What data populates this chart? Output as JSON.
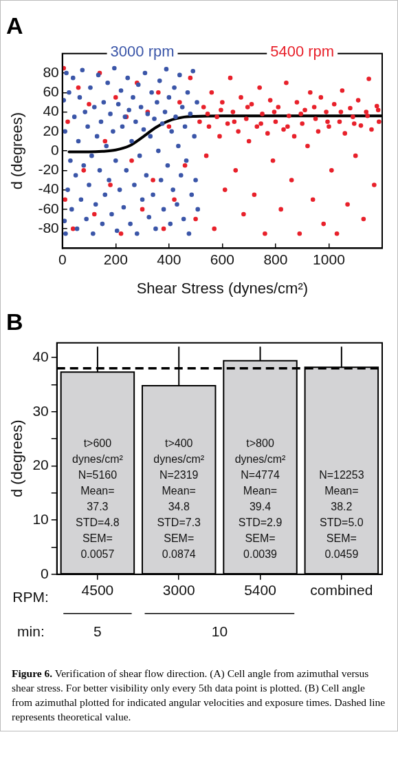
{
  "chart_data": [
    {
      "type": "scatter",
      "title": "A",
      "xlabel": "Shear Stress (dynes/cm²)",
      "ylabel": "d (degrees)",
      "xlim": [
        0,
        1200
      ],
      "xticks": [
        0,
        200,
        400,
        600,
        800,
        1000
      ],
      "ylim": [
        -100,
        100
      ],
      "yticks": [
        -80,
        -60,
        -40,
        -20,
        0,
        20,
        40,
        60,
        80
      ],
      "grid": false,
      "marker": "circle",
      "series": [
        {
          "name": "3000 rpm",
          "color": "#3a55a8",
          "x": [
            5,
            8,
            10,
            12,
            15,
            20,
            25,
            30,
            35,
            40,
            45,
            50,
            55,
            60,
            65,
            70,
            75,
            80,
            85,
            90,
            95,
            100,
            105,
            110,
            115,
            120,
            125,
            130,
            135,
            140,
            145,
            150,
            155,
            160,
            165,
            170,
            175,
            180,
            185,
            190,
            195,
            200,
            205,
            210,
            215,
            220,
            225,
            230,
            235,
            240,
            245,
            250,
            255,
            260,
            265,
            270,
            275,
            280,
            285,
            290,
            295,
            300,
            305,
            310,
            315,
            320,
            325,
            330,
            335,
            340,
            345,
            350,
            355,
            360,
            365,
            370,
            375,
            380,
            385,
            390,
            395,
            400,
            405,
            410,
            415,
            420,
            425,
            430,
            435,
            440,
            445,
            450,
            455,
            460,
            465,
            470,
            475,
            480,
            485,
            490,
            495,
            500,
            505,
            508
          ],
          "values": [
            52,
            -72,
            20,
            -85,
            80,
            -40,
            60,
            -10,
            -60,
            75,
            35,
            -25,
            -80,
            10,
            55,
            -50,
            83,
            -15,
            40,
            -70,
            25,
            -35,
            65,
            -5,
            -85,
            45,
            -55,
            15,
            78,
            -20,
            30,
            -75,
            50,
            -45,
            5,
            70,
            -30,
            38,
            -65,
            20,
            85,
            -10,
            -82,
            48,
            -40,
            62,
            25,
            -58,
            35,
            -20,
            75,
            42,
            -75,
            10,
            55,
            -35,
            30,
            -85,
            68,
            -5,
            45,
            -50,
            22,
            80,
            -25,
            38,
            -68,
            15,
            60,
            -45,
            33,
            -80,
            50,
            0,
            72,
            -30,
            28,
            -60,
            40,
            84,
            -15,
            55,
            -75,
            20,
            -40,
            65,
            35,
            -55,
            5,
            78,
            -25,
            45,
            -70,
            25,
            -10,
            60,
            -85,
            38,
            -45,
            82,
            15,
            -30,
            50,
            -60
          ]
        },
        {
          "name": "5400 rpm",
          "color": "#e8202a",
          "x": [
            5,
            10,
            20,
            40,
            60,
            80,
            100,
            120,
            140,
            160,
            180,
            200,
            220,
            240,
            260,
            280,
            300,
            320,
            340,
            360,
            380,
            400,
            420,
            440,
            460,
            480,
            500,
            515,
            530,
            540,
            550,
            560,
            570,
            580,
            590,
            600,
            610,
            620,
            630,
            640,
            650,
            660,
            670,
            680,
            690,
            700,
            710,
            720,
            730,
            740,
            750,
            760,
            770,
            780,
            790,
            800,
            810,
            820,
            830,
            840,
            850,
            860,
            870,
            880,
            890,
            900,
            910,
            920,
            930,
            940,
            950,
            960,
            970,
            980,
            990,
            1000,
            1010,
            1020,
            1030,
            1040,
            1050,
            1060,
            1070,
            1080,
            1090,
            1100,
            1110,
            1120,
            1130,
            1140,
            1150,
            1160,
            1170,
            1180,
            1188,
            545,
            595,
            645,
            695,
            745,
            795,
            845,
            895,
            945,
            995,
            1045,
            1095,
            1145,
            1185
          ],
          "values": [
            85,
            -50,
            30,
            -80,
            65,
            -20,
            48,
            -65,
            80,
            10,
            -35,
            55,
            -85,
            35,
            -10,
            70,
            -60,
            40,
            -30,
            60,
            -80,
            25,
            -50,
            50,
            -15,
            75,
            -70,
            30,
            45,
            -5,
            25,
            60,
            -80,
            35,
            15,
            50,
            -40,
            28,
            75,
            40,
            -20,
            20,
            55,
            -65,
            33,
            10,
            48,
            -45,
            25,
            65,
            38,
            -85,
            18,
            52,
            -10,
            30,
            45,
            -60,
            22,
            70,
            36,
            -30,
            15,
            50,
            -85,
            28,
            42,
            5,
            60,
            -50,
            33,
            20,
            55,
            -75,
            40,
            25,
            -20,
            48,
            -85,
            30,
            62,
            18,
            -55,
            44,
            35,
            -5,
            52,
            26,
            -70,
            40,
            74,
            22,
            -35,
            46,
            30,
            38,
            42,
            30,
            45,
            28,
            40,
            25,
            38,
            45,
            30,
            40,
            28,
            36,
            42
          ]
        },
        {
          "type": "line",
          "color": "#000000",
          "marker": "none",
          "x": [
            25,
            100,
            150,
            200,
            250,
            300,
            350,
            400,
            450,
            500,
            600,
            1200
          ],
          "values": [
            -1,
            -1,
            -0.5,
            1,
            5,
            14,
            24,
            31,
            34.5,
            35.5,
            36,
            36
          ]
        }
      ]
    },
    {
      "type": "bar",
      "title": "B",
      "ylabel": "d (degrees)",
      "categories": [
        "4500",
        "3000",
        "5400",
        "combined"
      ],
      "values": [
        37.3,
        34.8,
        39.4,
        38.2
      ],
      "color": "#d3d3d5",
      "errors": [
        [
          37.3,
          42
        ],
        [
          34.8,
          42
        ],
        [
          39.4,
          42
        ],
        [
          38.2,
          42
        ]
      ],
      "ylim": [
        0,
        42.7
      ],
      "yticks": [
        0,
        {
          "value": 5,
          "label": null
        },
        10,
        {
          "value": 15,
          "label": null
        },
        20,
        {
          "value": 25,
          "label": null
        },
        30,
        {
          "value": 35,
          "label": null
        },
        40
      ],
      "grid": false,
      "ref_lines": [
        {
          "axis": "y",
          "value": 38,
          "color": "#000000",
          "line_style": "dashed"
        }
      ],
      "annotations": [
        "t>600\ndynes/cm²\nN=5160\nMean=\n37.3\nSTD=4.8\nSEM=\n0.0057",
        "t>400\ndynes/cm²\nN=2319\nMean=\n34.8\nSTD=7.3\nSEM=\n0.0874",
        "t>800\ndynes/cm²\nN=4774\nMean=\n39.4\nSTD=2.9\nSEM=\n0.0039",
        "N=12253\nMean=\n38.2\nSTD=5.0\nSEM=\n0.0459",
        "RPM:",
        "min:",
        "5",
        "10",
        "Figure 6.",
        "Verification of shear flow direction. (A) Cell angle from azimuthal versus shear stress. For better visibility only every 5th data point is plotted. (B) Cell angle from azimuthal plotted for indicated angular velocities and exposure times. Dashed line represents theoretical value."
      ]
    }
  ]
}
